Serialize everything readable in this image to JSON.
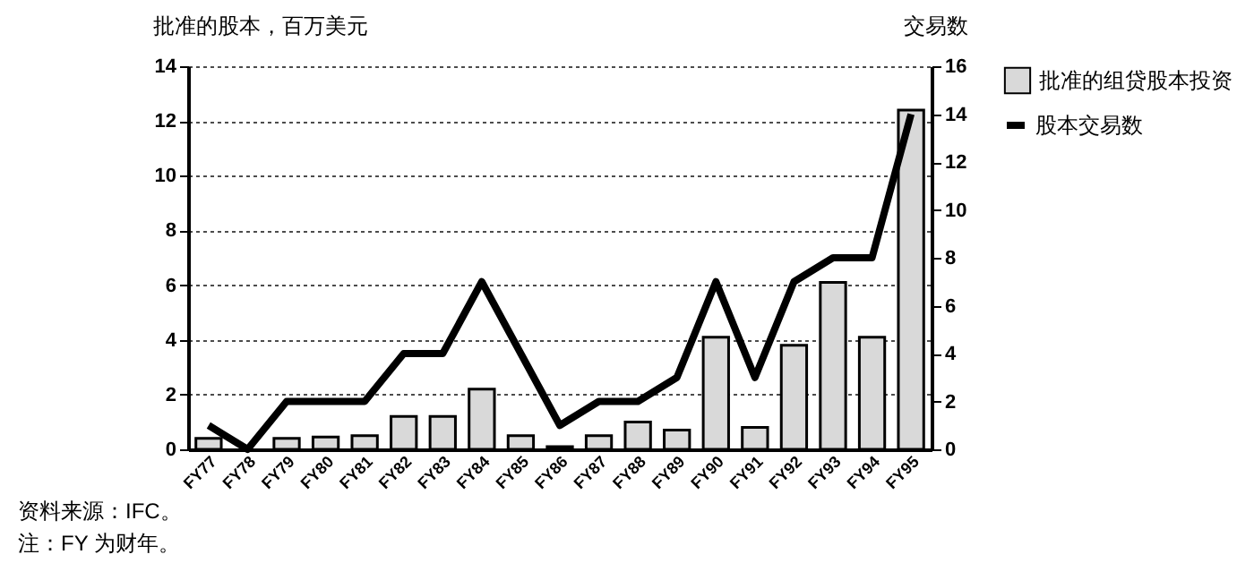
{
  "chart_data": {
    "type": "bar",
    "ylabel": "批准的股本，百万美元",
    "y2label": "交易数",
    "categories": [
      "FY77",
      "FY78",
      "FY79",
      "FY80",
      "FY81",
      "FY82",
      "FY83",
      "FY84",
      "FY85",
      "FY86",
      "FY87",
      "FY88",
      "FY89",
      "FY90",
      "FY91",
      "FY92",
      "FY93",
      "FY94",
      "FY95"
    ],
    "series": [
      {
        "name": "股本交易数",
        "type": "line",
        "axis": "y2",
        "color": "#000000",
        "values": [
          1,
          0,
          2,
          2,
          2,
          4,
          4,
          7,
          4,
          1,
          2,
          2,
          3,
          7,
          3,
          7,
          8,
          8,
          14
        ]
      },
      {
        "name": "批准的组贷股本投资",
        "type": "bar",
        "color": "#d9d9d9",
        "values": [
          0.4,
          null,
          0.4,
          0.45,
          0.5,
          1.2,
          1.2,
          2.2,
          0.5,
          0.1,
          0.5,
          1.0,
          0.7,
          4.1,
          0.8,
          3.8,
          6.1,
          4.1,
          12.4
        ]
      }
    ],
    "ylim": [
      0,
      14
    ],
    "yticks": [
      0,
      2,
      4,
      6,
      8,
      10,
      12,
      14
    ],
    "y2lim": [
      0,
      16
    ],
    "y2ticks": [
      0,
      2,
      4,
      6,
      8,
      10,
      12,
      14,
      16
    ],
    "grid": "y",
    "legend": "right",
    "marker": "none",
    "line_style": "solid",
    "annotations": [
      "资料来源：IFC。",
      "注：FY 为财年。"
    ]
  }
}
